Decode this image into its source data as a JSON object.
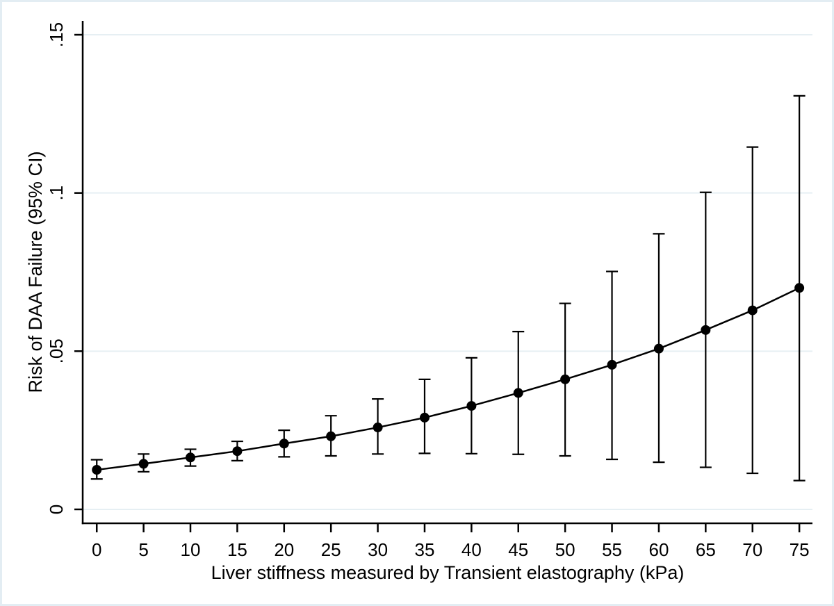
{
  "window": {
    "description": "Stata-style margins plot of predicted risk with 95% confidence intervals"
  },
  "colors": {
    "background": "#ffffff",
    "frame_border": "#e3edf3",
    "grid": "#e6eff3",
    "axis": "#000000",
    "line": "#000000",
    "marker": "#000000",
    "error_bar": "#000000"
  },
  "chart_data": {
    "type": "line",
    "title": "",
    "xlabel": "Liver stiffness measured by Transient elastography (kPa)",
    "ylabel": "Risk of DAA Failure (95% CI)",
    "grid": "horizontal",
    "legend": "none",
    "xlim": [
      -1.5,
      76.4
    ],
    "ylim": [
      -0.0044,
      0.1544
    ],
    "x": [
      0,
      5,
      10,
      15,
      20,
      25,
      30,
      35,
      40,
      45,
      50,
      55,
      60,
      65,
      70,
      75
    ],
    "x_tick_labels": [
      "0",
      "5",
      "10",
      "15",
      "20",
      "25",
      "30",
      "35",
      "40",
      "45",
      "50",
      "55",
      "60",
      "65",
      "70",
      "75"
    ],
    "y_ticks": [
      {
        "value": 0.0,
        "label": "0"
      },
      {
        "value": 0.05,
        "label": ".05"
      },
      {
        "value": 0.1,
        "label": ".1"
      },
      {
        "value": 0.15,
        "label": ".15"
      }
    ],
    "series": [
      {
        "name": "predicted-risk-of-daa-failure",
        "marker": "circle",
        "color": "#000000",
        "values": [
          0.0125,
          0.0144,
          0.0164,
          0.0184,
          0.0208,
          0.0231,
          0.0259,
          0.029,
          0.0327,
          0.0368,
          0.0411,
          0.0457,
          0.0508,
          0.0567,
          0.0629,
          0.07
        ],
        "ci_lower": [
          0.0096,
          0.0119,
          0.0137,
          0.0154,
          0.0166,
          0.0169,
          0.0175,
          0.0177,
          0.0176,
          0.0174,
          0.0169,
          0.0158,
          0.0149,
          0.0133,
          0.0114,
          0.0091
        ],
        "ci_upper": [
          0.0157,
          0.0175,
          0.019,
          0.0215,
          0.025,
          0.0296,
          0.0349,
          0.0411,
          0.0479,
          0.0562,
          0.0651,
          0.0752,
          0.0871,
          0.1002,
          0.1145,
          0.1307
        ]
      }
    ]
  }
}
